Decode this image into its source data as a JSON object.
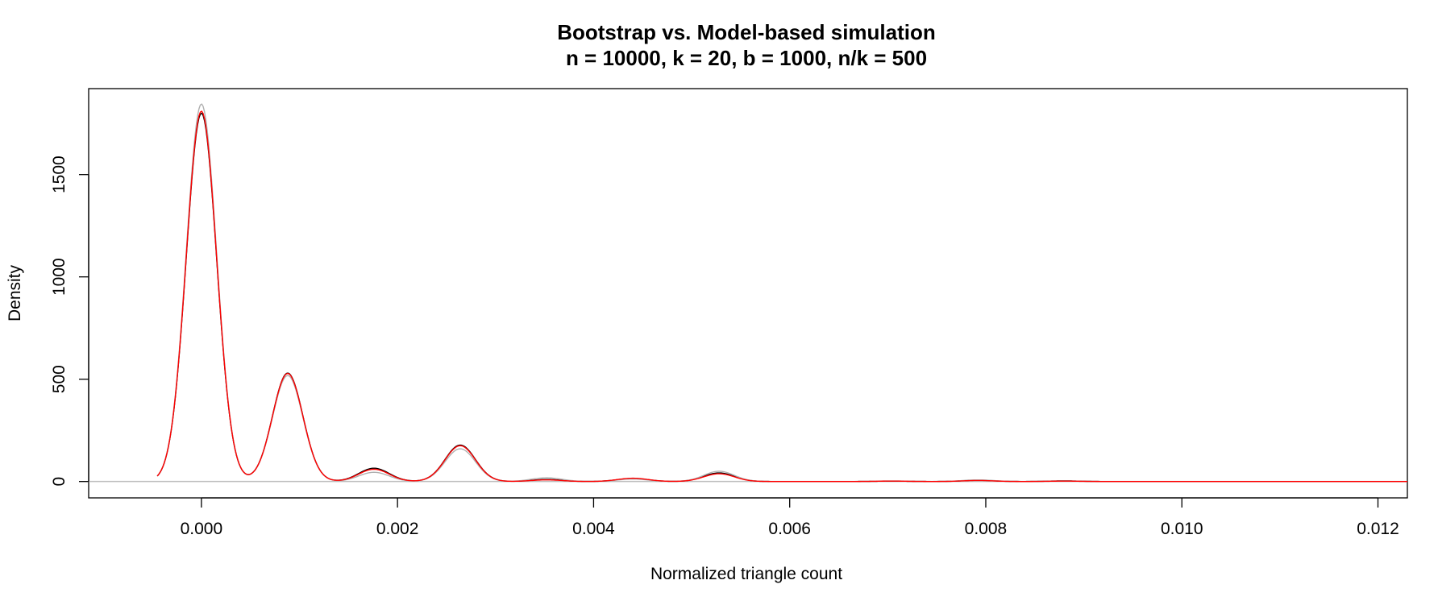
{
  "chart_data": {
    "type": "line",
    "title": "Bootstrap vs. Model-based simulation",
    "subtitle": "n = 10000, k = 20, b = 1000, n/k = 500",
    "xlabel": "Normalized triangle count",
    "ylabel": "Density",
    "xlim": [
      -0.00115,
      0.0123
    ],
    "ylim": [
      -80,
      1920
    ],
    "x_ticks": [
      0.0,
      0.002,
      0.004,
      0.006,
      0.008,
      0.01,
      0.012
    ],
    "x_tick_labels": [
      "0.000",
      "0.002",
      "0.004",
      "0.006",
      "0.008",
      "0.010",
      "0.012"
    ],
    "y_ticks": [
      0,
      500,
      1000,
      1500
    ],
    "y_tick_labels": [
      "0",
      "500",
      "1000",
      "1500"
    ],
    "grid": false,
    "zero_line": true,
    "bandwidth": 0.000155,
    "x_range": [
      -0.00045,
      0.0123
    ],
    "series": [
      {
        "color": "#000000",
        "peaks": [
          {
            "x": 0.0,
            "y": 1800
          },
          {
            "x": 0.00088,
            "y": 530
          },
          {
            "x": 0.00176,
            "y": 65
          },
          {
            "x": 0.00264,
            "y": 178
          },
          {
            "x": 0.00352,
            "y": 10
          },
          {
            "x": 0.0044,
            "y": 15
          },
          {
            "x": 0.00528,
            "y": 42
          },
          {
            "x": 0.00704,
            "y": 2
          },
          {
            "x": 0.00792,
            "y": 6
          },
          {
            "x": 0.0088,
            "y": 3
          }
        ]
      },
      {
        "color": "#b0b0b0",
        "peaks": [
          {
            "x": 0.0,
            "y": 1845
          },
          {
            "x": 0.00088,
            "y": 518
          },
          {
            "x": 0.00176,
            "y": 45
          },
          {
            "x": 0.00264,
            "y": 160
          },
          {
            "x": 0.00352,
            "y": 18
          },
          {
            "x": 0.0044,
            "y": 12
          },
          {
            "x": 0.00528,
            "y": 50
          },
          {
            "x": 0.00704,
            "y": 3
          },
          {
            "x": 0.00792,
            "y": 8
          },
          {
            "x": 0.0088,
            "y": 2
          }
        ]
      },
      {
        "color": "#ff0000",
        "peaks": [
          {
            "x": 0.0,
            "y": 1810
          },
          {
            "x": 0.00088,
            "y": 528
          },
          {
            "x": 0.00176,
            "y": 60
          },
          {
            "x": 0.00264,
            "y": 175
          },
          {
            "x": 0.00352,
            "y": 8
          },
          {
            "x": 0.0044,
            "y": 16
          },
          {
            "x": 0.00528,
            "y": 38
          },
          {
            "x": 0.00704,
            "y": 2
          },
          {
            "x": 0.00792,
            "y": 5
          },
          {
            "x": 0.0088,
            "y": 2
          }
        ]
      }
    ]
  }
}
